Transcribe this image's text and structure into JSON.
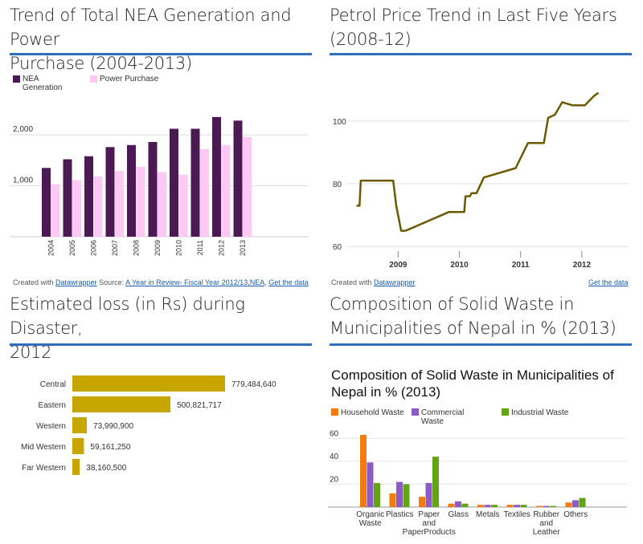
{
  "panels": {
    "nea": {
      "title_line1": "Trend of Total NEA Generation and Power",
      "title_line2": "Purchase (2004-2013)",
      "legend1": "NEA",
      "legend1b": "Generation",
      "legend2": "Power Purchase",
      "credit_prefix": "Created with ",
      "credit_link": "Datawrapper",
      "credit_source": " Source: ",
      "credit_source_link": "A Year in Review- Fiscal Year 2012/13,NEA",
      "credit_get": "Get the data"
    },
    "petrol": {
      "title_line1": "Petrol Price Trend in Last Five Years",
      "title_line2": "(2008-12)",
      "credit_prefix": "Created with ",
      "credit_link": "Datawrapper",
      "credit_get": "Get the data"
    },
    "loss": {
      "title_line1": "Estimated loss (in Rs) during Disaster,",
      "title_line2": "2012"
    },
    "waste": {
      "title_line1": "Composition of Solid Waste in",
      "title_line2": "Municipalities of Nepal in % (2013)",
      "inner_title_line1": "Composition of Solid Waste in Municipalities of",
      "inner_title_line2": "Nepal in % (2013)"
    }
  },
  "chart_data": [
    {
      "type": "bar",
      "categories": [
        "2004",
        "2005",
        "2006",
        "2007",
        "2008",
        "2009",
        "2010",
        "2011",
        "2012",
        "2013"
      ],
      "series": [
        {
          "name": "NEA Generation",
          "color": "#4b1a52",
          "values": [
            1350,
            1520,
            1580,
            1760,
            1800,
            1860,
            2120,
            2120,
            2350,
            2280
          ]
        },
        {
          "name": "Power Purchase",
          "color": "#fbc9f4",
          "values": [
            1030,
            1110,
            1180,
            1290,
            1370,
            1270,
            1220,
            1720,
            1800,
            1960
          ]
        }
      ],
      "yticks": [
        1000,
        2000
      ],
      "ytick_labels": [
        "1,000",
        "2,000"
      ],
      "ylim": [
        0,
        2600
      ],
      "grid": true
    },
    {
      "type": "line",
      "color": "#6b5a00",
      "x_tick_labels": [
        "2009",
        "2010",
        "2011",
        "2012"
      ],
      "x_ticks": [
        2009,
        2010,
        2011,
        2012
      ],
      "y_tick_labels": [
        "60",
        "80",
        "100"
      ],
      "y_ticks": [
        60,
        80,
        100
      ],
      "ylim": [
        58,
        113
      ],
      "xlim": [
        2008.3,
        2012.5
      ],
      "points": [
        [
          2008.32,
          73
        ],
        [
          2008.37,
          73
        ],
        [
          2008.39,
          81
        ],
        [
          2008.92,
          81
        ],
        [
          2008.97,
          73
        ],
        [
          2009.05,
          65
        ],
        [
          2009.12,
          65
        ],
        [
          2009.83,
          71
        ],
        [
          2010.08,
          71
        ],
        [
          2010.1,
          76
        ],
        [
          2010.17,
          76
        ],
        [
          2010.2,
          77
        ],
        [
          2010.28,
          77
        ],
        [
          2010.4,
          82
        ],
        [
          2010.92,
          85
        ],
        [
          2011.12,
          93
        ],
        [
          2011.38,
          93
        ],
        [
          2011.45,
          101
        ],
        [
          2011.56,
          102
        ],
        [
          2011.68,
          106
        ],
        [
          2011.85,
          105
        ],
        [
          2012.05,
          105
        ],
        [
          2012.2,
          108
        ],
        [
          2012.27,
          109
        ]
      ],
      "grid": true
    },
    {
      "type": "bar",
      "orientation": "horizontal",
      "color": "#c8a602",
      "categories": [
        "Central",
        "Eastern",
        "Western",
        "Mid Western",
        "Far Western"
      ],
      "values": [
        779484640,
        500821717,
        73990900,
        59161250,
        38160500
      ],
      "value_labels": [
        "779,484,640",
        "500,821,717",
        "73,990,900",
        "59,161,250",
        "38,160,500"
      ]
    },
    {
      "type": "bar",
      "categories": [
        "Organic Waste",
        "Plastics",
        "Paper and PaperProducts",
        "Glass",
        "Metals",
        "Textiles",
        "Rubber and Leather",
        "Others"
      ],
      "category_lines": [
        [
          "Organic",
          "Waste"
        ],
        [
          "Plastics"
        ],
        [
          "Paper",
          "and",
          "PaperProducts"
        ],
        [
          "Glass"
        ],
        [
          "Metals"
        ],
        [
          "Textiles"
        ],
        [
          "Rubber",
          "and",
          "Leather"
        ],
        [
          "Others"
        ]
      ],
      "series": [
        {
          "name": "Household Waste",
          "color": "#f47c0e",
          "values": [
            63,
            12,
            9,
            3,
            2,
            2,
            1,
            4
          ]
        },
        {
          "name": "Commercial Waste",
          "name_lines": [
            "Commercial",
            "Waste"
          ],
          "color": "#8e5bc4",
          "values": [
            39,
            22,
            21,
            5,
            2,
            2,
            1,
            6
          ]
        },
        {
          "name": "Industrial Waste",
          "color": "#63a414",
          "values": [
            21,
            20,
            44,
            3,
            2,
            2,
            1,
            8
          ]
        }
      ],
      "yticks": [
        20,
        40,
        60
      ],
      "ylim": [
        0,
        70
      ],
      "grid": true
    }
  ]
}
